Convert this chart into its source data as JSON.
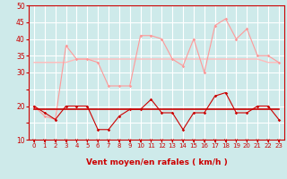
{
  "x": [
    0,
    1,
    2,
    3,
    4,
    5,
    6,
    7,
    8,
    9,
    10,
    11,
    12,
    13,
    14,
    15,
    16,
    17,
    18,
    19,
    20,
    21,
    22,
    23
  ],
  "wind_avg": [
    20,
    18,
    16,
    20,
    20,
    20,
    13,
    13,
    17,
    19,
    19,
    22,
    18,
    18,
    13,
    18,
    18,
    23,
    24,
    18,
    18,
    20,
    20,
    16
  ],
  "wind_avg_flat": [
    19,
    19,
    19,
    19,
    19,
    19,
    19,
    19,
    19,
    19,
    19,
    19,
    19,
    19,
    19,
    19,
    19,
    19,
    19,
    19,
    19,
    19,
    19,
    19
  ],
  "gust_raw": [
    20,
    17,
    16,
    38,
    34,
    34,
    33,
    26,
    26,
    26,
    41,
    41,
    40,
    34,
    32,
    40,
    30,
    44,
    46,
    40,
    43,
    35,
    35,
    33
  ],
  "gust_flat": [
    33,
    33,
    33,
    33,
    34,
    34,
    34,
    34,
    34,
    34,
    34,
    34,
    34,
    34,
    34,
    34,
    34,
    34,
    34,
    34,
    34,
    34,
    33,
    33
  ],
  "background_color": "#ceeaea",
  "grid_color": "#ffffff",
  "gust_raw_color": "#ff9999",
  "gust_flat_color": "#ffbbbb",
  "wind_avg_color": "#cc0000",
  "wind_flat_color": "#cc0000",
  "arrow_color": "#cc0000",
  "spine_color": "#cc0000",
  "tick_color": "#cc0000",
  "xlabel": "Vent moyen/en rafales ( km/h )",
  "xlabel_color": "#cc0000",
  "ylim": [
    10,
    50
  ],
  "yticks": [
    10,
    15,
    20,
    25,
    30,
    35,
    40,
    45,
    50
  ],
  "ytick_labels": [
    "10",
    "",
    "20",
    "",
    "30",
    "35",
    "40",
    "45",
    "50"
  ]
}
